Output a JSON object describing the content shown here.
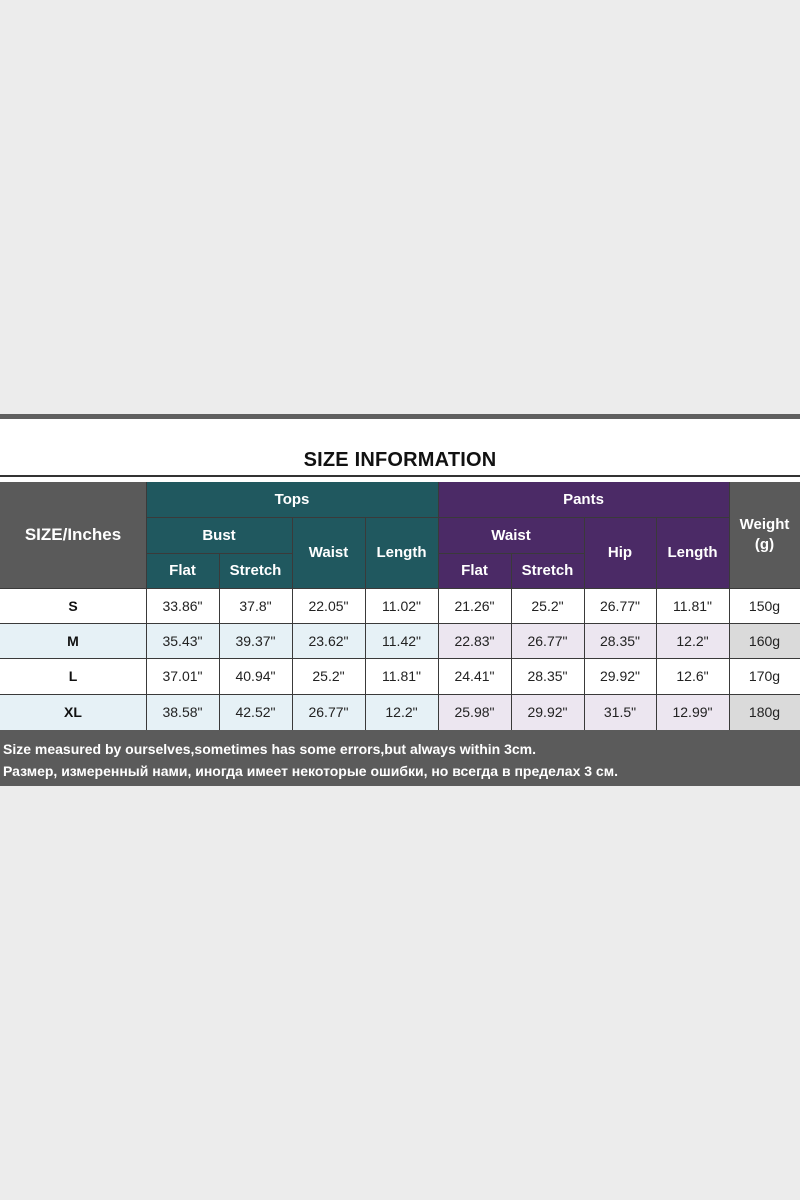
{
  "title": "SIZE INFORMATION",
  "headers": {
    "size": "SIZE/Inches",
    "tops": "Tops",
    "pants": "Pants",
    "bust": "Bust",
    "tops_waist": "Waist",
    "tops_length": "Length",
    "pants_waist": "Waist",
    "hip": "Hip",
    "pants_length": "Length",
    "weight": "Weight (g)",
    "flat": "Flat",
    "stretch": "Stretch"
  },
  "rows": [
    {
      "size": "S",
      "bust_flat": "33.86\"",
      "bust_stretch": "37.8\"",
      "tops_waist": "22.05\"",
      "tops_length": "11.02\"",
      "pants_waist_flat": "21.26\"",
      "pants_waist_stretch": "25.2\"",
      "hip": "26.77\"",
      "pants_length": "11.81\"",
      "weight": "150g"
    },
    {
      "size": "M",
      "bust_flat": "35.43\"",
      "bust_stretch": "39.37\"",
      "tops_waist": "23.62\"",
      "tops_length": "11.42\"",
      "pants_waist_flat": "22.83\"",
      "pants_waist_stretch": "26.77\"",
      "hip": "28.35\"",
      "pants_length": "12.2\"",
      "weight": "160g"
    },
    {
      "size": "L",
      "bust_flat": "37.01\"",
      "bust_stretch": "40.94\"",
      "tops_waist": "25.2\"",
      "tops_length": "11.81\"",
      "pants_waist_flat": "24.41\"",
      "pants_waist_stretch": "28.35\"",
      "hip": "29.92\"",
      "pants_length": "12.6\"",
      "weight": "170g"
    },
    {
      "size": "XL",
      "bust_flat": "38.58\"",
      "bust_stretch": "42.52\"",
      "tops_waist": "26.77\"",
      "tops_length": "12.2\"",
      "pants_waist_flat": "25.98\"",
      "pants_waist_stretch": "29.92\"",
      "hip": "31.5\"",
      "pants_length": "12.99\"",
      "weight": "180g"
    }
  ],
  "notes": {
    "english": "Size measured by ourselves,sometimes has some errors,but always within 3cm.",
    "russian": "Размер, измеренный нами, иногда имеет некоторые ошибки, но всегда в пределах 3 см."
  },
  "colors": {
    "tops_header": "#20585f",
    "pants_header": "#4b2a66",
    "neutral_header": "#5a5a5a",
    "tops_alt_row": "#e6f1f6",
    "pants_alt_row": "#ece6f0"
  }
}
